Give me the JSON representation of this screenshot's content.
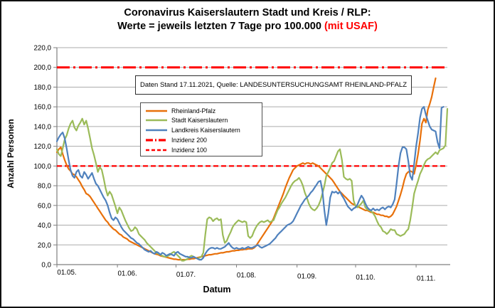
{
  "title": {
    "line1": "Coronavirus Kaiserslautern Stadt und Kreis / RLP:",
    "line2": "Werte = jeweils letzten 7 Tage pro 100.000 ",
    "line2_highlight": "(mit USAF)"
  },
  "note": {
    "text": "Daten Stand 17.11.2021, Quelle: LANDESUNTERSUCHUNGSAMT RHEINLAND-PFALZ"
  },
  "colors": {
    "grid": "#ababab",
    "axis": "#7f7f7f",
    "reference": "#ff0000",
    "background": "#ffffff"
  },
  "chart_data": {
    "type": "line",
    "title": "Coronavirus Kaiserslautern Stadt und Kreis / RLP: Werte = jeweils letzten 7 Tage pro 100.000 (mit USAF)",
    "xlabel": "Datum",
    "ylabel": "Anzahl Personen",
    "grid": true,
    "legend_position": "upper-left-inside",
    "y_axis": {
      "min": 0,
      "max": 220,
      "step": 20,
      "tick_labels": [
        "220,0",
        "200,0",
        "180,0",
        "160,0",
        "140,0",
        "120,0",
        "100,0",
        "80,0",
        "60,0",
        "40,0",
        "20,0",
        "0,0"
      ]
    },
    "x_axis": {
      "start_label": "01.05.",
      "domain_days": [
        0,
        200
      ],
      "tick_days": [
        0,
        31,
        61,
        92,
        123,
        153,
        184
      ],
      "tick_labels": [
        "01.05.",
        "01.06.",
        "01.07.",
        "01.08.",
        "01.09.",
        "01.10.",
        "01.11."
      ]
    },
    "reference_lines": [
      {
        "label": "Inzidenz 200",
        "value": 200,
        "color": "#ff0000",
        "style": "longdashdot",
        "width": 3
      },
      {
        "label": "Inzidenz 100",
        "value": 100,
        "color": "#ff0000",
        "style": "dash",
        "width": 2.2
      }
    ],
    "series": [
      {
        "name": "Rheinland-Pfalz",
        "color": "#e8700a",
        "width": 2.2,
        "values": [
          114,
          117,
          119,
          112,
          106,
          101,
          97,
          95,
          92,
          91,
          89,
          86,
          83,
          79,
          76,
          72,
          71,
          69,
          66,
          63,
          60,
          57,
          54,
          51,
          48,
          45,
          43,
          40,
          38,
          36,
          35,
          33,
          31,
          30,
          28,
          27,
          26,
          24,
          23,
          22,
          21,
          20,
          19,
          18,
          17,
          16,
          15,
          14,
          13,
          12,
          11,
          10.5,
          10,
          9,
          8.5,
          8,
          7.5,
          7,
          6.5,
          6,
          5.5,
          5.5,
          5,
          5,
          5,
          5,
          5,
          5.5,
          5.5,
          6,
          6,
          6.5,
          7,
          7.5,
          8,
          8.5,
          9,
          9.5,
          10,
          10,
          10.5,
          11,
          11,
          11.5,
          12,
          12,
          12.5,
          13,
          13,
          13.5,
          14,
          14,
          14.5,
          14.5,
          15,
          15,
          15.5,
          15.5,
          16,
          16,
          16,
          17,
          19,
          22,
          25,
          28,
          31,
          34,
          37,
          40,
          43,
          47,
          52,
          57,
          62,
          67,
          72,
          78,
          83,
          88,
          92,
          96,
          98,
          100,
          101,
          102,
          103,
          102,
          103,
          103,
          102,
          103,
          102,
          101,
          100,
          98,
          96,
          94,
          92,
          90,
          88,
          86,
          83,
          80,
          77,
          74,
          72,
          70,
          68,
          66,
          64,
          62,
          61,
          60,
          59,
          58,
          57,
          56,
          55,
          55,
          54,
          53,
          53,
          52,
          51,
          51,
          50,
          50,
          49,
          49,
          48,
          49,
          51,
          55,
          59,
          65,
          71,
          78,
          86,
          92,
          94,
          95,
          94,
          92,
          101,
          112,
          126,
          143,
          148,
          144,
          157,
          163,
          170,
          180,
          189,
          null,
          null,
          null,
          null,
          null,
          null
        ]
      },
      {
        "name": "Stadt Kaiserslautern",
        "color": "#9bbb59",
        "width": 2.2,
        "values": [
          117,
          112,
          110,
          118,
          127,
          131,
          138,
          143,
          146,
          139,
          136,
          141,
          144,
          148,
          142,
          146,
          138,
          128,
          118,
          111,
          103,
          94,
          99,
          96,
          87,
          77,
          70,
          74,
          71,
          65,
          59,
          52,
          58,
          55,
          50,
          45,
          41,
          37,
          34,
          35,
          38,
          36,
          31,
          29,
          27,
          25,
          22,
          20,
          18,
          16,
          14,
          12,
          11,
          10,
          9,
          8,
          8,
          9,
          10,
          12,
          13,
          11,
          9,
          7,
          4,
          4,
          5,
          6,
          8,
          9,
          8,
          7,
          6,
          7,
          8,
          12,
          30,
          46,
          48,
          47,
          44,
          46,
          47,
          45,
          46,
          30,
          22,
          24,
          29,
          33,
          38,
          41,
          43,
          45,
          44,
          43,
          44,
          43,
          29,
          27,
          29,
          34,
          38,
          41,
          43,
          44,
          43,
          44,
          45,
          43,
          44,
          45,
          50,
          55,
          58,
          62,
          65,
          68,
          72,
          76,
          80,
          83,
          85,
          86,
          88,
          85,
          80,
          73,
          68,
          62,
          58,
          56,
          55,
          57,
          60,
          65,
          72,
          80,
          90,
          94,
          98,
          103,
          105,
          110,
          115,
          117,
          106,
          89,
          87,
          86,
          87,
          85,
          65,
          59,
          58,
          60,
          62,
          65,
          58,
          56,
          55,
          54,
          52,
          49,
          44,
          40,
          38,
          34,
          33,
          31,
          33,
          36,
          35,
          35,
          31,
          30,
          29,
          30,
          31,
          34,
          36,
          45,
          58,
          72,
          79,
          85,
          92,
          96,
          101,
          105,
          107,
          108,
          110,
          112,
          114,
          112,
          116,
          117,
          118,
          121,
          158
        ]
      },
      {
        "name": "Landkreis Kaiserslautern",
        "color": "#4f81bd",
        "width": 2.2,
        "values": [
          125,
          129,
          132,
          134,
          128,
          118,
          106,
          96,
          90,
          88,
          94,
          96,
          90,
          88,
          94,
          91,
          87,
          90,
          93,
          87,
          82,
          80,
          76,
          72,
          68,
          65,
          60,
          53,
          47,
          45,
          48,
          46,
          42,
          38,
          35,
          33,
          31,
          29,
          27,
          26,
          24,
          22,
          21,
          19,
          17,
          15,
          14,
          13,
          14,
          12,
          11,
          13,
          12,
          10,
          12,
          11,
          9,
          10,
          11,
          10,
          9,
          12,
          13,
          11,
          10,
          9,
          8,
          8,
          7,
          7,
          8,
          7,
          6,
          5,
          5,
          7,
          11,
          14,
          16,
          17,
          17,
          16,
          17,
          16,
          16,
          17,
          18,
          20,
          22,
          19,
          17,
          16,
          17,
          16,
          16,
          17,
          16,
          17,
          18,
          17,
          17,
          18,
          19,
          20,
          18,
          17,
          18,
          19,
          20,
          21,
          23,
          25,
          27,
          30,
          32,
          34,
          36,
          38,
          40,
          41,
          42,
          44,
          48,
          52,
          56,
          60,
          63,
          66,
          68,
          70,
          73,
          75,
          78,
          81,
          84,
          85,
          75,
          55,
          40,
          52,
          68,
          74,
          73,
          74,
          72,
          74,
          70,
          67,
          63,
          59,
          57,
          55,
          57,
          58,
          61,
          66,
          70,
          67,
          62,
          58,
          56,
          55,
          57,
          55,
          56,
          55,
          57,
          58,
          56,
          58,
          59,
          58,
          61,
          66,
          82,
          100,
          113,
          119,
          119,
          117,
          105,
          90,
          86,
          102,
          120,
          133,
          149,
          158,
          160,
          152,
          146,
          140,
          137,
          136,
          135,
          124,
          118,
          159,
          160,
          null,
          null
        ]
      }
    ]
  }
}
